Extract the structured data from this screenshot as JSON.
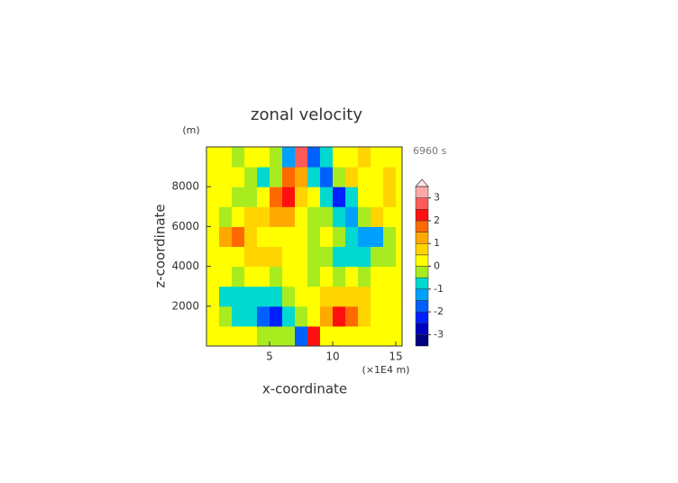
{
  "chart_data": {
    "type": "contour",
    "title": "zonal velocity",
    "subtitle": "6960 s",
    "x_label": "x-coordinate",
    "y_label": "z-coordinate",
    "x_unit": "(×1E4 m)",
    "y_unit": "(m)",
    "x": [
      0.5,
      1.5,
      2.5,
      3.5,
      4.5,
      5.5,
      6.5,
      7.5,
      8.5,
      9.5,
      10.5,
      11.5,
      12.5,
      13.5,
      14.5,
      15.5
    ],
    "z": [
      500,
      1500,
      2500,
      3500,
      4500,
      5500,
      6500,
      7500,
      8500,
      9500
    ],
    "values": [
      [
        0.2,
        0.2,
        0.1,
        0.2,
        -0.2,
        -0.3,
        -0.4,
        -2.0,
        2.0,
        0.4,
        0.3,
        0.2,
        0.2,
        0.2,
        0.2,
        0.2
      ],
      [
        0.2,
        -0.3,
        -0.7,
        -1.0,
        -1.6,
        -2.3,
        -1.0,
        -0.5,
        0.2,
        1.0,
        2.3,
        1.6,
        0.8,
        0.3,
        0.2,
        0.2
      ],
      [
        0.2,
        -0.7,
        -0.8,
        -0.7,
        -0.8,
        -0.6,
        -0.3,
        0.2,
        0.3,
        0.6,
        0.8,
        0.9,
        0.8,
        0.4,
        0.2,
        0.2
      ],
      [
        0.1,
        0.2,
        -0.2,
        0.1,
        0.2,
        -0.2,
        0.2,
        0.1,
        -0.2,
        0.2,
        -0.1,
        0.2,
        -0.2,
        0.2,
        0.1,
        0.1
      ],
      [
        0.3,
        0.3,
        0.4,
        0.6,
        0.6,
        0.5,
        0.2,
        0.3,
        -0.2,
        -0.3,
        -0.6,
        -0.6,
        -0.6,
        -0.3,
        -0.2,
        0.2
      ],
      [
        0.3,
        1.2,
        1.6,
        0.9,
        0.4,
        0.3,
        0.2,
        0.3,
        -0.2,
        0.2,
        -0.4,
        -0.8,
        -1.4,
        -1.3,
        -0.3,
        0.2
      ],
      [
        0.2,
        -0.3,
        0.4,
        0.6,
        0.8,
        1.2,
        1.4,
        0.3,
        -0.2,
        -0.4,
        -1.0,
        -1.2,
        -0.4,
        0.6,
        0.3,
        0.2
      ],
      [
        0.2,
        0.3,
        -0.5,
        -0.3,
        0.4,
        1.6,
        2.2,
        0.5,
        0.2,
        -0.7,
        -2.2,
        -0.8,
        0.3,
        0.4,
        0.6,
        0.2
      ],
      [
        0.2,
        0.3,
        0.4,
        -0.2,
        -0.7,
        -0.4,
        1.8,
        1.2,
        -0.8,
        -2.0,
        -0.3,
        0.6,
        0.4,
        0.3,
        0.6,
        0.2
      ],
      [
        0.2,
        0.3,
        -0.4,
        0.3,
        0.2,
        -0.4,
        -1.5,
        2.5,
        -2.0,
        -0.6,
        0.4,
        0.3,
        0.6,
        0.3,
        0.2,
        0.2
      ]
    ],
    "xlim": [
      0,
      15.5
    ],
    "ylim": [
      0,
      10000
    ],
    "xticks": [
      5,
      10,
      15
    ],
    "yticks": [
      2000,
      4000,
      6000,
      8000
    ],
    "levels": [
      -3.5,
      -3,
      -2.5,
      -2,
      -1.5,
      -1,
      -0.5,
      0,
      0.5,
      1,
      1.5,
      2,
      2.5,
      3,
      3.5
    ],
    "colors": [
      "#000080",
      "#0000c0",
      "#0020ff",
      "#0060ff",
      "#00a0ff",
      "#00d8d0",
      "#a8ec20",
      "#ffff00",
      "#ffd400",
      "#ffa800",
      "#ff6a00",
      "#ff1010",
      "#ff5a5a",
      "#ffa8a8"
    ],
    "extend_color": "#ffe4e4",
    "colorbar_ticks": [
      -3,
      -2,
      -1,
      0,
      1,
      2,
      3
    ]
  }
}
